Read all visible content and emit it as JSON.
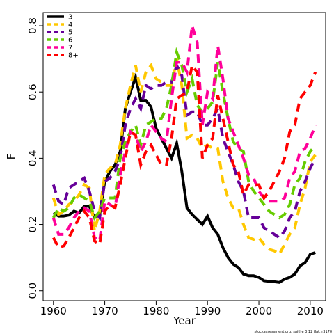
{
  "chart_data": {
    "type": "line",
    "x_label": "Year",
    "y_label": "F",
    "footnote": "stockassessment.org, saithe 3 12 flat, r3170",
    "x": [
      1960,
      1961,
      1962,
      1963,
      1964,
      1965,
      1966,
      1967,
      1968,
      1969,
      1970,
      1971,
      1972,
      1973,
      1974,
      1975,
      1976,
      1977,
      1978,
      1979,
      1980,
      1981,
      1982,
      1983,
      1984,
      1985,
      1986,
      1987,
      1988,
      1989,
      1990,
      1991,
      1992,
      1993,
      1994,
      1995,
      1996,
      1997,
      1998,
      1999,
      2000,
      2001,
      2002,
      2003,
      2004,
      2005,
      2006,
      2007,
      2008,
      2009,
      2010,
      2011
    ],
    "xlim": [
      1958,
      2013
    ],
    "xticks": [
      1960,
      1970,
      1980,
      1990,
      2000,
      2010
    ],
    "ylim": [
      -0.03,
      0.84
    ],
    "yticks": [
      {
        "value": 0,
        "label": "0.0"
      },
      0.2,
      0.4,
      0.6,
      0.8
    ],
    "legend": "top-left",
    "series": [
      {
        "name": "3",
        "color": "#000000",
        "dash": false,
        "values": [
          0.235,
          0.225,
          0.225,
          0.228,
          0.24,
          0.235,
          0.255,
          0.255,
          0.22,
          0.23,
          0.33,
          0.36,
          0.38,
          0.42,
          0.55,
          0.6,
          0.645,
          0.575,
          0.575,
          0.555,
          0.49,
          0.46,
          0.43,
          0.4,
          0.445,
          0.36,
          0.25,
          0.23,
          0.215,
          0.2,
          0.225,
          0.19,
          0.17,
          0.13,
          0.1,
          0.08,
          0.07,
          0.05,
          0.045,
          0.045,
          0.04,
          0.03,
          0.028,
          0.027,
          0.025,
          0.035,
          0.04,
          0.05,
          0.075,
          0.085,
          0.11,
          0.115
        ]
      },
      {
        "name": "4",
        "color": "#ffc800",
        "dash": true,
        "values": [
          0.28,
          0.23,
          0.24,
          0.26,
          0.27,
          0.29,
          0.32,
          0.31,
          0.18,
          0.24,
          0.35,
          0.37,
          0.38,
          0.44,
          0.55,
          0.62,
          0.68,
          0.6,
          0.66,
          0.68,
          0.64,
          0.63,
          0.62,
          0.62,
          0.7,
          0.62,
          0.46,
          0.47,
          0.46,
          0.43,
          0.44,
          0.43,
          0.43,
          0.33,
          0.28,
          0.25,
          0.25,
          0.2,
          0.16,
          0.155,
          0.16,
          0.14,
          0.125,
          0.12,
          0.11,
          0.14,
          0.17,
          0.19,
          0.26,
          0.31,
          0.39,
          0.41
        ]
      },
      {
        "name": "5",
        "color": "#660099",
        "dash": true,
        "values": [
          0.32,
          0.27,
          0.26,
          0.31,
          0.32,
          0.33,
          0.34,
          0.3,
          0.24,
          0.22,
          0.33,
          0.34,
          0.36,
          0.4,
          0.5,
          0.55,
          0.58,
          0.55,
          0.62,
          0.61,
          0.62,
          0.62,
          0.63,
          0.63,
          0.68,
          0.65,
          0.53,
          0.54,
          0.54,
          0.5,
          0.5,
          0.52,
          0.55,
          0.46,
          0.42,
          0.38,
          0.33,
          0.3,
          0.22,
          0.22,
          0.22,
          0.19,
          0.18,
          0.17,
          0.16,
          0.18,
          0.22,
          0.24,
          0.3,
          0.33,
          0.37,
          0.4
        ]
      },
      {
        "name": "6",
        "color": "#66cc00",
        "dash": true,
        "values": [
          0.22,
          0.25,
          0.24,
          0.25,
          0.28,
          0.29,
          0.28,
          0.27,
          0.22,
          0.24,
          0.28,
          0.28,
          0.28,
          0.4,
          0.45,
          0.48,
          0.5,
          0.44,
          0.5,
          0.51,
          0.52,
          0.52,
          0.55,
          0.62,
          0.72,
          0.68,
          0.6,
          0.64,
          0.56,
          0.54,
          0.55,
          0.57,
          0.69,
          0.6,
          0.52,
          0.45,
          0.43,
          0.42,
          0.33,
          0.3,
          0.28,
          0.26,
          0.24,
          0.23,
          0.22,
          0.23,
          0.26,
          0.32,
          0.34,
          0.39,
          0.42,
          0.44
        ]
      },
      {
        "name": "7",
        "color": "#ff0099",
        "dash": true,
        "values": [
          0.22,
          0.17,
          0.17,
          0.19,
          0.22,
          0.24,
          0.25,
          0.24,
          0.16,
          0.15,
          0.27,
          0.26,
          0.25,
          0.35,
          0.42,
          0.48,
          0.47,
          0.42,
          0.45,
          0.5,
          0.48,
          0.46,
          0.45,
          0.58,
          0.69,
          0.69,
          0.66,
          0.8,
          0.75,
          0.5,
          0.6,
          0.58,
          0.74,
          0.64,
          0.52,
          0.48,
          0.44,
          0.4,
          0.35,
          0.34,
          0.3,
          0.28,
          0.27,
          0.27,
          0.27,
          0.28,
          0.34,
          0.36,
          0.42,
          0.43,
          0.46,
          0.5
        ]
      },
      {
        "name": "8+",
        "color": "#ff0000",
        "dash": true,
        "values": [
          0.16,
          0.13,
          0.135,
          0.16,
          0.19,
          0.22,
          0.24,
          0.22,
          0.15,
          0.14,
          0.24,
          0.26,
          0.25,
          0.32,
          0.4,
          0.48,
          0.47,
          0.38,
          0.42,
          0.44,
          0.41,
          0.38,
          0.38,
          0.46,
          0.58,
          0.59,
          0.6,
          0.68,
          0.66,
          0.4,
          0.44,
          0.46,
          0.59,
          0.52,
          0.45,
          0.38,
          0.36,
          0.29,
          0.32,
          0.32,
          0.32,
          0.28,
          0.3,
          0.33,
          0.36,
          0.4,
          0.48,
          0.5,
          0.58,
          0.6,
          0.62,
          0.66
        ]
      }
    ]
  }
}
